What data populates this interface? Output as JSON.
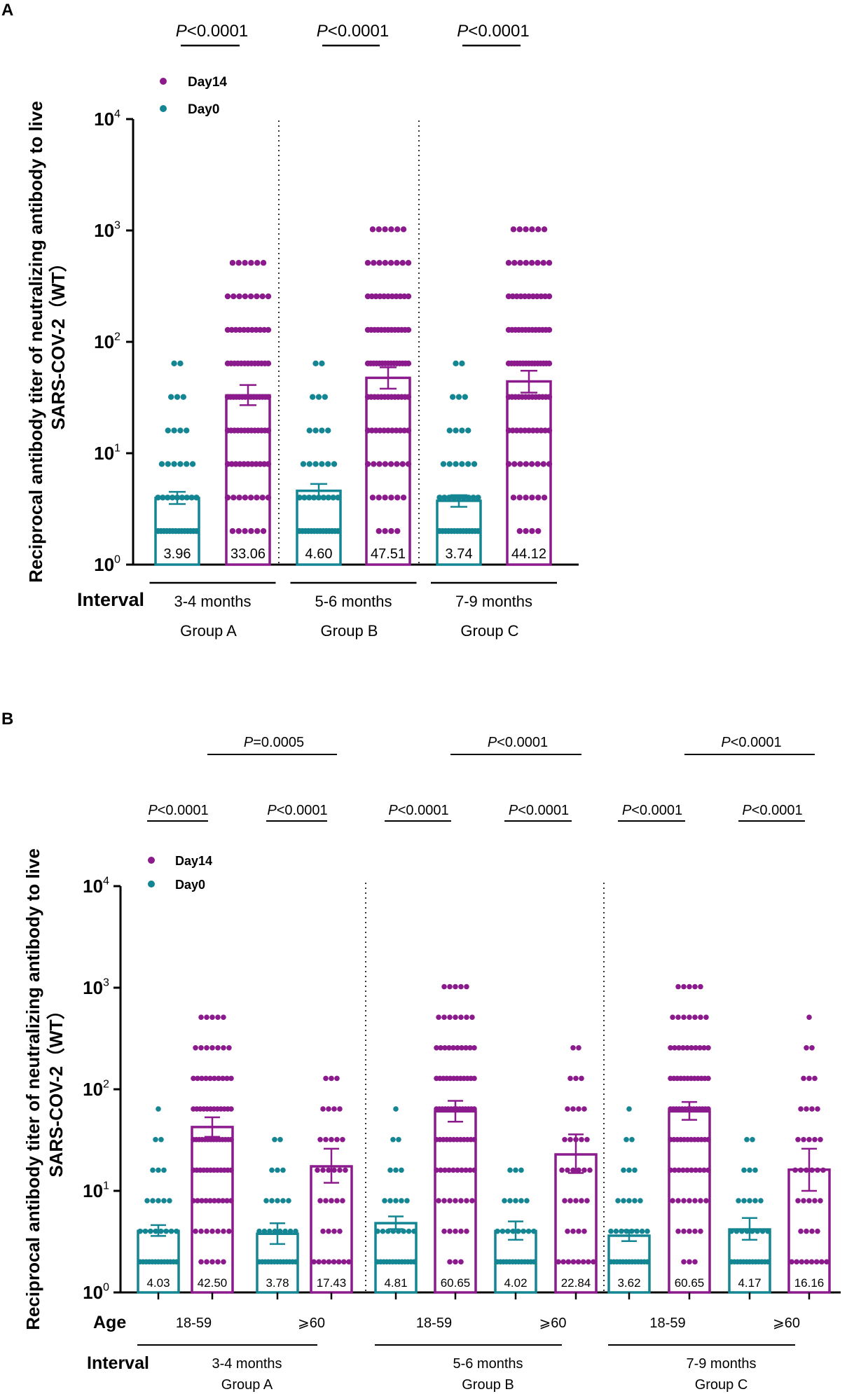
{
  "chart_data": [
    {
      "type": "bar",
      "panel": "A",
      "scale": "log10",
      "ylim": [
        1,
        10000
      ],
      "yticks": [
        {
          "value": 1,
          "base": "10",
          "exp": "0"
        },
        {
          "value": 10,
          "base": "10",
          "exp": "1"
        },
        {
          "value": 100,
          "base": "10",
          "exp": "2"
        },
        {
          "value": 1000,
          "base": "10",
          "exp": "3"
        },
        {
          "value": 10000,
          "base": "10",
          "exp": "4"
        }
      ],
      "ylabel_line1": "Reciprocal antibody titer of neutralizing antibody to live",
      "ylabel_line2": "SARS-COV-2（WT）",
      "legend": [
        "Day14",
        "Day0"
      ],
      "legend_colors": [
        "#8b1a8c",
        "#138593"
      ],
      "row_labels": [
        "Interval"
      ],
      "categories": [
        "3-4 months",
        "5-6 months",
        "7-9 months"
      ],
      "group_names": [
        "Group A",
        "Group B",
        "Group C"
      ],
      "series": [
        {
          "name": "Day0",
          "color": "#138593",
          "values": [
            3.96,
            4.6,
            3.74
          ],
          "labels": [
            "3.96",
            "4.60",
            "3.74"
          ],
          "err_low": [
            3.5,
            4.0,
            3.3
          ],
          "err_high": [
            4.5,
            5.3,
            4.2
          ]
        },
        {
          "name": "Day14",
          "color": "#8b1a8c",
          "values": [
            33.06,
            47.51,
            44.12
          ],
          "labels": [
            "33.06",
            "47.51",
            "44.12"
          ],
          "err_low": [
            27,
            38,
            35
          ],
          "err_high": [
            41,
            59,
            55
          ]
        }
      ],
      "significance": [
        {
          "prefix": "P",
          "text": "<0.0001",
          "from": "3-4 months Day0",
          "to": "3-4 months Day14"
        },
        {
          "prefix": "P",
          "text": "<0.0001",
          "from": "5-6 months Day0",
          "to": "5-6 months Day14"
        },
        {
          "prefix": "P",
          "text": "<0.0001",
          "from": "7-9 months Day0",
          "to": "7-9 months Day14"
        }
      ]
    },
    {
      "type": "bar",
      "panel": "B",
      "scale": "log10",
      "ylim": [
        1,
        10000
      ],
      "yticks": [
        {
          "value": 1,
          "base": "10",
          "exp": "0"
        },
        {
          "value": 10,
          "base": "10",
          "exp": "1"
        },
        {
          "value": 100,
          "base": "10",
          "exp": "2"
        },
        {
          "value": 1000,
          "base": "10",
          "exp": "3"
        },
        {
          "value": 10000,
          "base": "10",
          "exp": "4"
        }
      ],
      "ylabel_line1": "Reciprocal antibody titer of neutralizing antibody to live",
      "ylabel_line2": "SARS-COV-2（WT）",
      "legend": [
        "Day14",
        "Day0"
      ],
      "legend_colors": [
        "#8b1a8c",
        "#138593"
      ],
      "row_labels": [
        "Age",
        "Interval"
      ],
      "age_labels": [
        "18-59",
        "⩾60"
      ],
      "categories": [
        "3-4 months",
        "5-6 months",
        "7-9 months"
      ],
      "group_names": [
        "Group A",
        "Group B",
        "Group C"
      ],
      "series": [
        {
          "name": "Day0 18-59",
          "color": "#138593",
          "values": [
            4.03,
            4.81,
            3.62
          ],
          "labels": [
            "4.03",
            "4.81",
            "3.62"
          ],
          "err_low": [
            3.6,
            4.2,
            3.2
          ],
          "err_high": [
            4.6,
            5.6,
            4.1
          ]
        },
        {
          "name": "Day14 18-59",
          "color": "#8b1a8c",
          "values": [
            42.5,
            60.65,
            60.65
          ],
          "labels": [
            "42.50",
            "60.65",
            "60.65"
          ],
          "err_low": [
            34,
            48,
            50
          ],
          "err_high": [
            53,
            77,
            75
          ]
        },
        {
          "name": "Day0 ⩾60",
          "color": "#138593",
          "values": [
            3.78,
            4.02,
            4.17
          ],
          "labels": [
            "3.78",
            "4.02",
            "4.17"
          ],
          "err_low": [
            3.0,
            3.3,
            3.3
          ],
          "err_high": [
            4.8,
            5.0,
            5.4
          ]
        },
        {
          "name": "Day14 ⩾60",
          "color": "#8b1a8c",
          "values": [
            17.43,
            22.84,
            16.16
          ],
          "labels": [
            "17.43",
            "22.84",
            "16.16"
          ],
          "err_low": [
            12,
            15,
            10
          ],
          "err_high": [
            26,
            36,
            26
          ]
        }
      ],
      "significance_pairs": [
        {
          "prefix": "P",
          "text": "<0.0001"
        },
        {
          "prefix": "P",
          "text": "<0.0001"
        },
        {
          "prefix": "P",
          "text": "<0.0001"
        },
        {
          "prefix": "P",
          "text": "<0.0001"
        },
        {
          "prefix": "P",
          "text": "<0.0001"
        },
        {
          "prefix": "P",
          "text": "<0.0001"
        }
      ],
      "significance_age": [
        {
          "prefix": "P",
          "text": "=0.0005"
        },
        {
          "prefix": "P",
          "text": "<0.0001"
        },
        {
          "prefix": "P",
          "text": "<0.0001"
        }
      ]
    }
  ]
}
